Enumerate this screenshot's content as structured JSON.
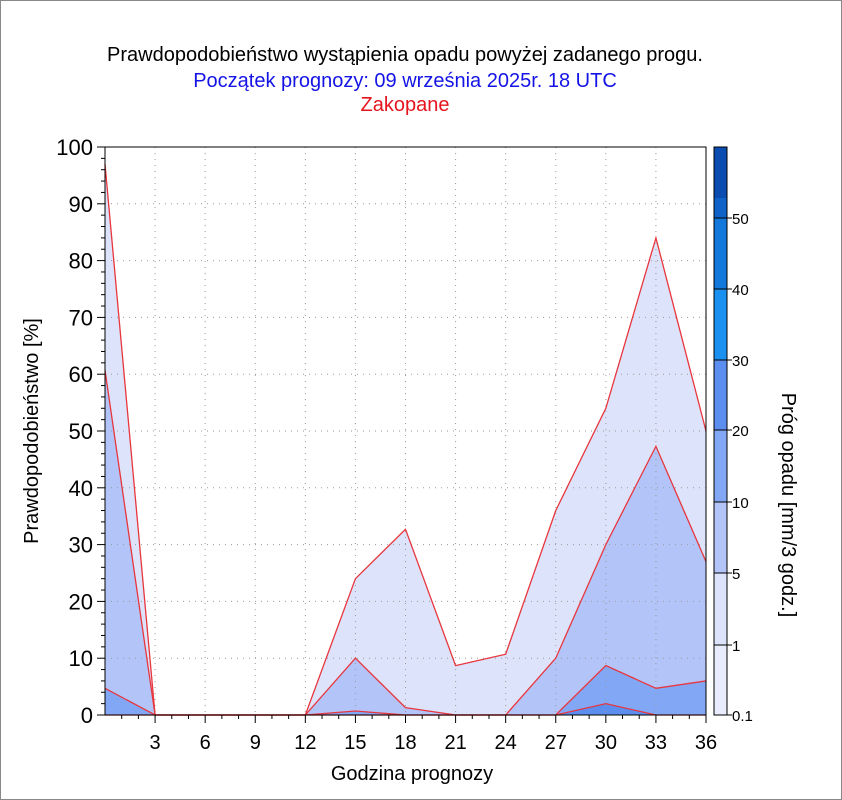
{
  "chart_data": {
    "type": "area",
    "title": "Prawdopodobieństwo wystąpienia opadu powyżej zadanego progu.",
    "subtitle": "Początek prognozy: 09 września 2025r. 18 UTC",
    "location": "Zakopane",
    "xlabel": "Godzina prognozy",
    "ylabel": "Prawdopodobieństwo [%]",
    "x": [
      0,
      3,
      6,
      9,
      12,
      15,
      18,
      21,
      24,
      27,
      30,
      33,
      36
    ],
    "xticks": [
      "3",
      "6",
      "9",
      "12",
      "15",
      "18",
      "21",
      "24",
      "27",
      "30",
      "33",
      "36"
    ],
    "xticks_values": [
      3,
      6,
      9,
      12,
      15,
      18,
      21,
      24,
      27,
      30,
      33,
      36
    ],
    "xlim": [
      0,
      36
    ],
    "ylim": [
      0,
      100
    ],
    "yticks": [
      "0",
      "10",
      "20",
      "30",
      "40",
      "50",
      "60",
      "70",
      "80",
      "90",
      "100"
    ],
    "grid": true,
    "series": [
      {
        "threshold": 0.1,
        "color": "#dde3fa",
        "values": [
          97,
          0,
          0,
          0,
          0,
          24,
          32.7,
          8.7,
          10.7,
          36,
          54,
          84,
          50
        ]
      },
      {
        "threshold": 1,
        "color": "#b3c4f8",
        "values": [
          60.7,
          0,
          0,
          0,
          0,
          10,
          1.3,
          0,
          0,
          10,
          30,
          47.3,
          27
        ]
      },
      {
        "threshold": 5,
        "color": "#82a8f5",
        "values": [
          4.7,
          0,
          0,
          0,
          0,
          0.7,
          0,
          0,
          0,
          0,
          8.7,
          4.7,
          6
        ]
      },
      {
        "threshold": 10,
        "color": "#5c8ef0",
        "values": [
          0,
          0,
          0,
          0,
          0,
          0,
          0,
          0,
          0,
          0,
          2,
          0,
          0
        ]
      }
    ],
    "line_color": "#e8363d",
    "colorbar": {
      "label": "Próg opadu [mm/3 godz.]",
      "ticks": [
        "0.1",
        "1",
        "5",
        "10",
        "20",
        "30",
        "40",
        "50"
      ],
      "colors": [
        "#e8ecfc",
        "#dde3fa",
        "#b3c4f8",
        "#82a8f5",
        "#5c8ef0",
        "#1a90f0",
        "#1278dc",
        "#0f62c8",
        "#0a4cb0",
        "#06379a"
      ]
    }
  }
}
